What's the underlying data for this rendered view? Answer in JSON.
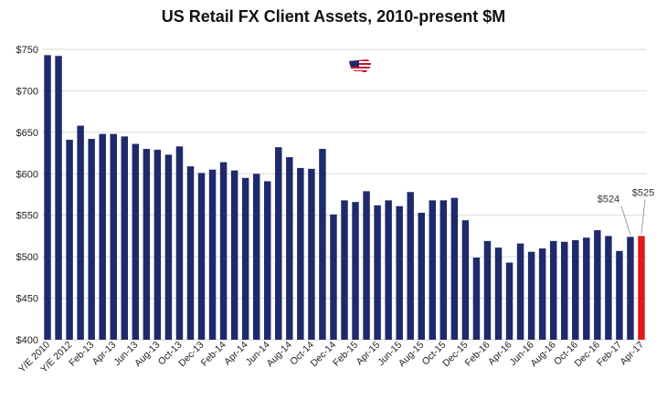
{
  "chart_data": {
    "type": "bar",
    "title": "US Retail FX Client Assets, 2010-present $M",
    "xlabel": "",
    "ylabel": "",
    "ylim": [
      400,
      750
    ],
    "yticks": [
      400,
      450,
      500,
      550,
      600,
      650,
      700,
      750
    ],
    "ytick_labels": [
      "$400",
      "$450",
      "$500",
      "$550",
      "$600",
      "$650",
      "$700",
      "$750"
    ],
    "grid": true,
    "bar_color": "#1f2a6b",
    "highlight_color": "#e01a1a",
    "flag_icon": "us-flag-map-icon",
    "categories": [
      "Y/E 2010",
      "",
      "Y/E 2012",
      "",
      "Feb-13",
      "",
      "Apr-13",
      "",
      "Jun-13",
      "",
      "Aug-13",
      "",
      "Oct-13",
      "",
      "Dec-13",
      "",
      "Feb-14",
      "",
      "Apr-14",
      "",
      "Jun-14",
      "",
      "Aug-14",
      "",
      "Oct-14",
      "",
      "Dec-14",
      "",
      "Feb-15",
      "",
      "Apr-15",
      "",
      "Jun-15",
      "",
      "Aug-15",
      "",
      "Oct-15",
      "",
      "Dec-15",
      "",
      "Feb-16",
      "",
      "Apr-16",
      "",
      "Jun-16",
      "",
      "Aug-16",
      "",
      "Oct-16",
      "",
      "Dec-16",
      "",
      "Feb-17",
      "",
      "Apr-17"
    ],
    "values": [
      743,
      742,
      641,
      658,
      642,
      648,
      648,
      645,
      636,
      630,
      629,
      623,
      633,
      609,
      601,
      605,
      614,
      604,
      595,
      600,
      591,
      632,
      620,
      607,
      606,
      630,
      551,
      568,
      566,
      579,
      562,
      568,
      561,
      578,
      553,
      568,
      568,
      571,
      544,
      499,
      519,
      511,
      493,
      516,
      506,
      510,
      519,
      518,
      520,
      523,
      532,
      525,
      507,
      524,
      525
    ],
    "highlight_index": 54,
    "data_labels": [
      {
        "index": 53,
        "text": "$524"
      },
      {
        "index": 54,
        "text": "$525"
      }
    ]
  }
}
